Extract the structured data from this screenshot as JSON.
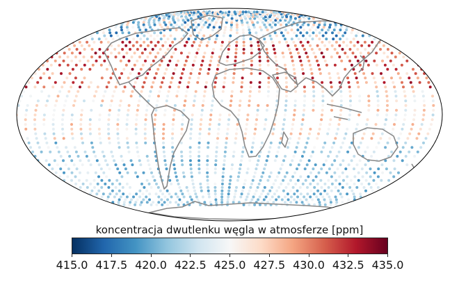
{
  "colorbar": {
    "label": "koncentracja dwutlenku węgla w atmosferze [ppm]",
    "min": 415.0,
    "max": 435.0,
    "ticks": [
      "415.0",
      "417.5",
      "420.0",
      "422.5",
      "425.0",
      "427.5",
      "430.0",
      "432.5",
      "435.0"
    ],
    "colormap": [
      "#053061",
      "#2166ac",
      "#4393c3",
      "#92c5de",
      "#d1e5f0",
      "#f7f7f7",
      "#fddbc7",
      "#f4a582",
      "#d6604d",
      "#b2182b",
      "#67001f"
    ]
  },
  "map": {
    "projection": "mollweide",
    "coastline_color": "#888888",
    "frame_color": "#000000"
  }
}
